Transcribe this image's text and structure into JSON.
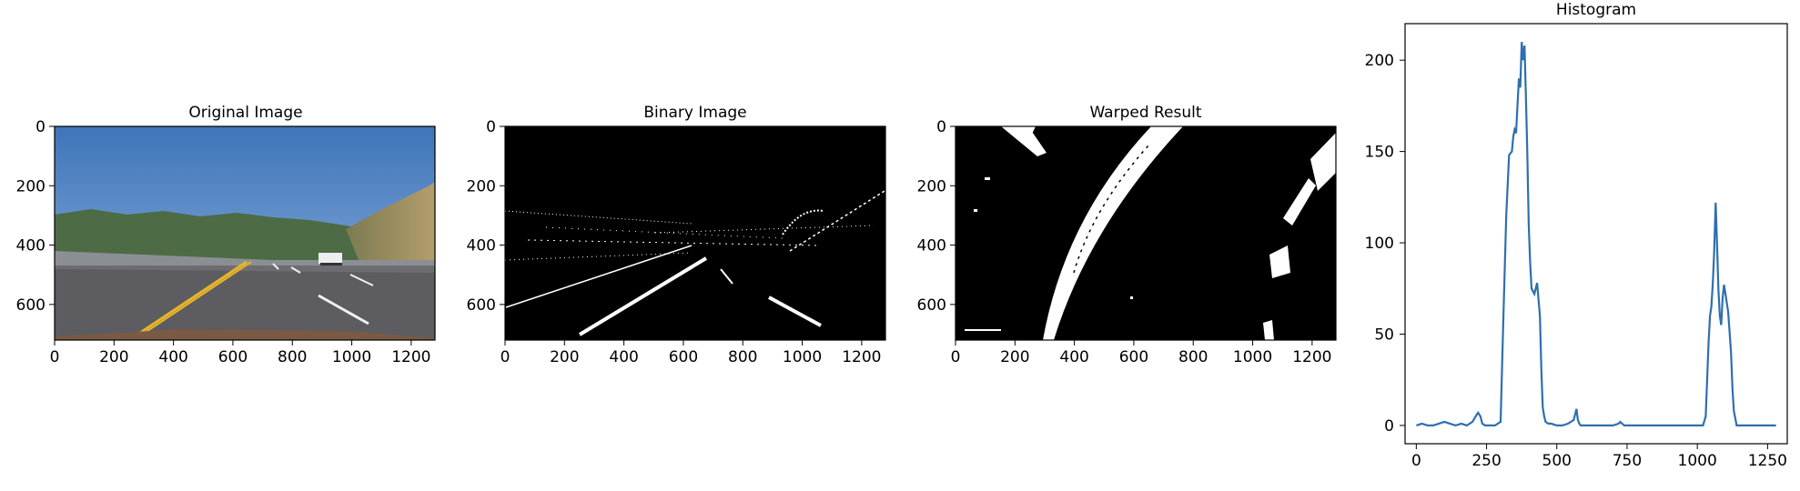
{
  "colors": {
    "line": "#2f6fae",
    "sky": "#4a7fc3",
    "road": "#5c5c61",
    "lane_yellow": "#e7b52a"
  },
  "chart_data": [
    {
      "type": "image",
      "title": "Original Image",
      "image_content": "road-photo",
      "xticks": [
        "0",
        "200",
        "400",
        "600",
        "800",
        "1000",
        "1200"
      ],
      "yticks": [
        "0",
        "200",
        "400",
        "600"
      ],
      "xlim": [
        0,
        1280
      ],
      "ylim": [
        720,
        0
      ]
    },
    {
      "type": "image",
      "title": "Binary Image",
      "image_content": "binary-threshold",
      "xticks": [
        "0",
        "200",
        "400",
        "600",
        "800",
        "1000",
        "1200"
      ],
      "yticks": [
        "0",
        "200",
        "400",
        "600"
      ],
      "xlim": [
        0,
        1280
      ],
      "ylim": [
        720,
        0
      ]
    },
    {
      "type": "image",
      "title": "Warped Result",
      "image_content": "warped-binary",
      "xticks": [
        "0",
        "200",
        "400",
        "600",
        "800",
        "1000",
        "1200"
      ],
      "yticks": [
        "0",
        "200",
        "400",
        "600"
      ],
      "xlim": [
        0,
        1280
      ],
      "ylim": [
        720,
        0
      ]
    },
    {
      "type": "line",
      "title": "Histogram",
      "xticks": [
        "0",
        "250",
        "500",
        "750",
        "1000",
        "1250"
      ],
      "yticks": [
        "0",
        "50",
        "100",
        "150",
        "200"
      ],
      "xlim": [
        -40,
        1320
      ],
      "ylim": [
        -10,
        220
      ],
      "series": [
        {
          "x": [
            0,
            20,
            40,
            60,
            80,
            100,
            120,
            140,
            160,
            180,
            200,
            215,
            220,
            228,
            235,
            245,
            260,
            280,
            300,
            310,
            320,
            330,
            340,
            345,
            350,
            355,
            360,
            365,
            370,
            375,
            380,
            385,
            390,
            395,
            400,
            405,
            410,
            420,
            430,
            440,
            445,
            450,
            455,
            460,
            470,
            480,
            500,
            520,
            540,
            560,
            570,
            575,
            580,
            585,
            600,
            650,
            700,
            720,
            725,
            740,
            800,
            900,
            1000,
            1020,
            1030,
            1040,
            1045,
            1050,
            1055,
            1060,
            1065,
            1070,
            1075,
            1080,
            1085,
            1090,
            1095,
            1100,
            1110,
            1120,
            1125,
            1130,
            1140,
            1200,
            1280
          ],
          "y": [
            0,
            1,
            0,
            0,
            1,
            2,
            1,
            0,
            1,
            0,
            2,
            6,
            7,
            5,
            1,
            0,
            0,
            0,
            2,
            60,
            115,
            148,
            150,
            158,
            162,
            160,
            175,
            190,
            185,
            210,
            200,
            208,
            180,
            150,
            110,
            90,
            75,
            72,
            78,
            60,
            30,
            10,
            5,
            2,
            1,
            1,
            0,
            0,
            1,
            3,
            9,
            3,
            1,
            0,
            0,
            0,
            0,
            1,
            2,
            0,
            0,
            0,
            0,
            0,
            5,
            45,
            60,
            65,
            78,
            95,
            122,
            100,
            75,
            60,
            55,
            70,
            77,
            72,
            62,
            40,
            20,
            8,
            0,
            0,
            0
          ]
        }
      ]
    }
  ]
}
